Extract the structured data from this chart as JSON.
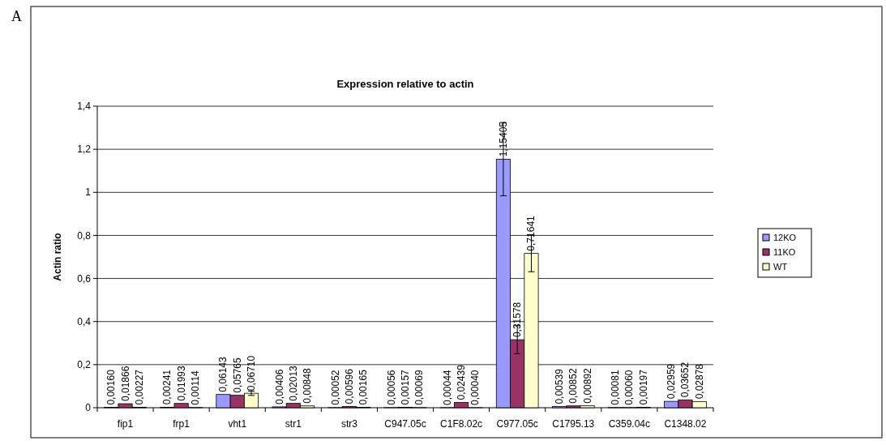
{
  "chart_data": {
    "type": "bar",
    "title": "Expression relative to actin",
    "ylabel": "Actin ratio",
    "annotations": [
      "A"
    ],
    "categories": [
      "fip1",
      "frp1",
      "vht1",
      "str1",
      "str3",
      "C947.05c",
      "C1F8.02c",
      "C977.05c",
      "C1795.13",
      "C359.04c",
      "C1348.02"
    ],
    "series": [
      {
        "name": "12KO",
        "color": "#9999ff",
        "values": [
          0.0016,
          0.00241,
          0.06143,
          0.00406,
          0.00052,
          0.00056,
          0.00044,
          1.15405,
          0.00539,
          0.00081,
          0.02959
        ],
        "value_labels": [
          "0,00160",
          "0,00241",
          "0,06143",
          "0,00406",
          "0,00052",
          "0,00056",
          "0,00044",
          "1,15405",
          "0,00539",
          "0,00081",
          "0,02959"
        ],
        "errors": [
          null,
          null,
          null,
          null,
          null,
          null,
          null,
          0.17,
          null,
          null,
          null
        ]
      },
      {
        "name": "11KO",
        "color": "#993366",
        "values": [
          0.01866,
          0.01993,
          0.05765,
          0.02013,
          0.00596,
          0.00157,
          0.02439,
          0.31578,
          0.00852,
          0.0006,
          0.03652
        ],
        "value_labels": [
          "0,01866",
          "0,01993",
          "0,05765",
          "0,02013",
          "0,00596",
          "0,00157",
          "0,02439",
          "0,31578",
          "0,00852",
          "0,00060",
          "0,03652"
        ],
        "errors": [
          null,
          null,
          null,
          null,
          null,
          null,
          null,
          0.065,
          null,
          null,
          null
        ]
      },
      {
        "name": "WT",
        "color": "#ffffcc",
        "values": [
          0.00227,
          0.00114,
          0.0671,
          0.00848,
          0.00165,
          0.00069,
          0.0004,
          0.71641,
          0.00892,
          0.00197,
          0.02878
        ],
        "value_labels": [
          "0,00227",
          "0,00114",
          "0,06710",
          "0,00848",
          "0,00165",
          "0,00069",
          "0,00040",
          "0,71641",
          "0,00892",
          "0,00197",
          "0,02878"
        ],
        "errors": [
          null,
          null,
          0.01,
          null,
          null,
          null,
          null,
          0.085,
          null,
          null,
          null
        ]
      }
    ],
    "ylim": [
      0,
      1.4
    ],
    "yticks": [
      0,
      {
        "value": 0.2,
        "label": "0,2"
      },
      {
        "value": 0.4,
        "label": "0,4"
      },
      {
        "value": 0.6,
        "label": "0,6"
      },
      {
        "value": 0.8,
        "label": "0,8"
      },
      1,
      {
        "value": 1.2,
        "label": "1,2"
      },
      {
        "value": 1.4,
        "label": "1,4"
      }
    ],
    "grid": "y",
    "legend": "right"
  }
}
